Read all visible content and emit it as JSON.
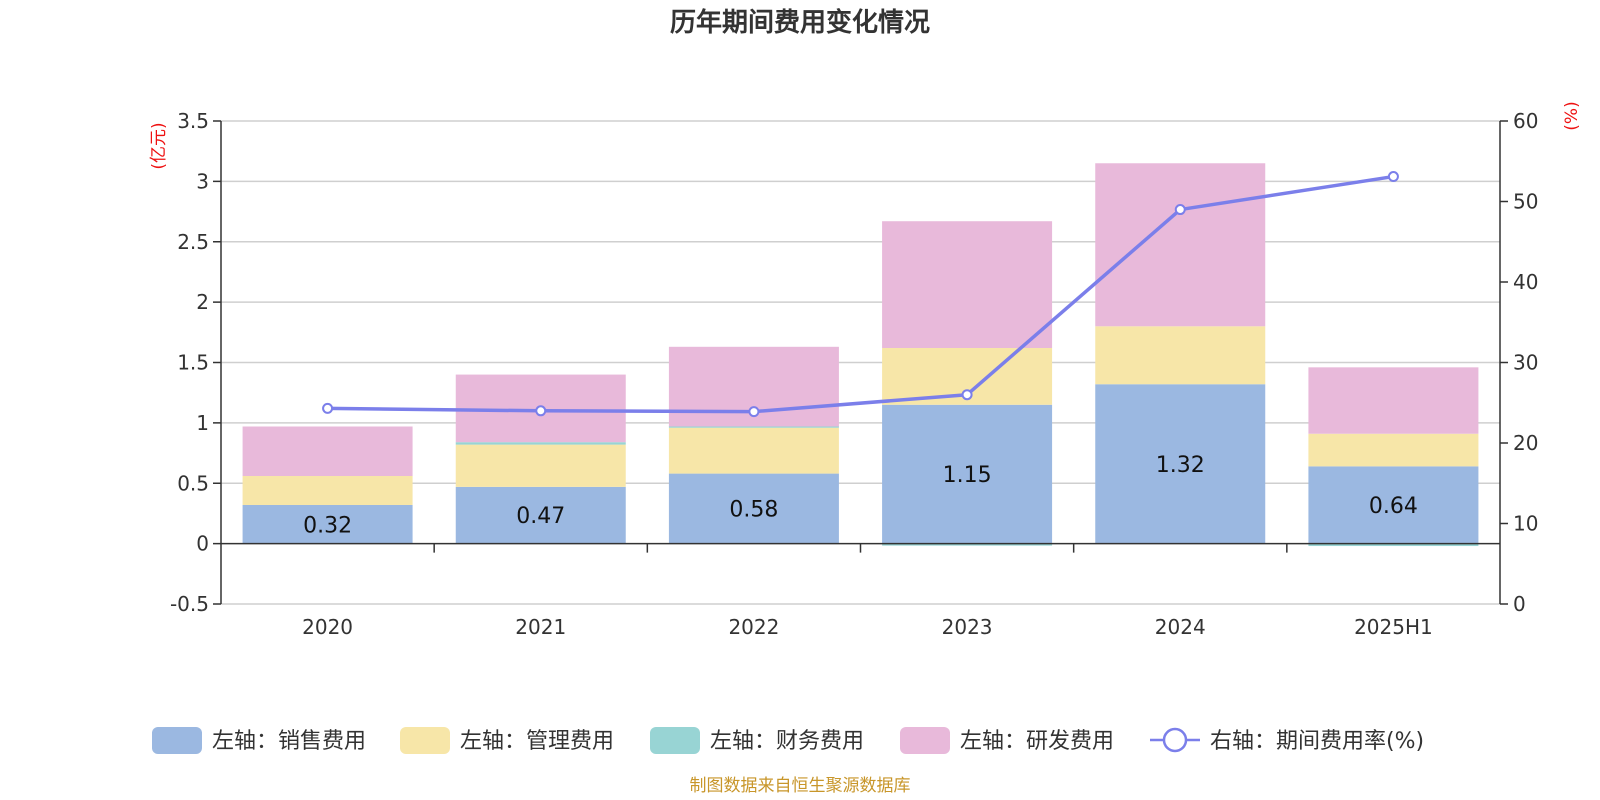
{
  "chart_data": {
    "type": "bar",
    "title": "历年期间费用变化情况",
    "categories": [
      "2020",
      "2021",
      "2022",
      "2023",
      "2024",
      "2025H1"
    ],
    "left_axis": {
      "unit_label": "(亿元)",
      "min": -0.5,
      "max": 3.5,
      "step": 0.5,
      "ticks": [
        "-0.5",
        "0",
        "0.5",
        "1",
        "1.5",
        "2",
        "2.5",
        "3",
        "3.5"
      ]
    },
    "right_axis": {
      "unit_label": "(%)",
      "min": 0,
      "max": 60,
      "step": 10,
      "ticks": [
        "0",
        "10",
        "20",
        "30",
        "40",
        "50",
        "60"
      ]
    },
    "series": [
      {
        "name": "左轴：销售费用",
        "kind": "bar",
        "axis": "left",
        "color": "#9bb8e1",
        "values": [
          0.32,
          0.47,
          0.58,
          1.15,
          1.32,
          0.64
        ],
        "labels": [
          "0.32",
          "0.47",
          "0.58",
          "1.15",
          "1.32",
          "0.64"
        ]
      },
      {
        "name": "左轴：管理费用",
        "kind": "bar",
        "axis": "left",
        "color": "#f7e6a8",
        "values": [
          0.24,
          0.35,
          0.38,
          0.47,
          0.48,
          0.27
        ]
      },
      {
        "name": "左轴：财务费用",
        "kind": "bar",
        "axis": "left",
        "color": "#98d4d4",
        "values": [
          0.0,
          0.02,
          0.01,
          -0.01,
          0.0,
          -0.02
        ]
      },
      {
        "name": "左轴：研发费用",
        "kind": "bar",
        "axis": "left",
        "color": "#e8b9da",
        "values": [
          0.41,
          0.56,
          0.66,
          1.05,
          1.35,
          0.55
        ]
      },
      {
        "name": "右轴：期间费用率(%)",
        "kind": "line",
        "axis": "right",
        "color": "#7b7fea",
        "values": [
          24.3,
          24.0,
          23.9,
          26.0,
          49.0,
          53.1
        ]
      }
    ],
    "grid": true,
    "legend_position": "bottom"
  },
  "footer": {
    "source": "制图数据来自恒生聚源数据库"
  }
}
